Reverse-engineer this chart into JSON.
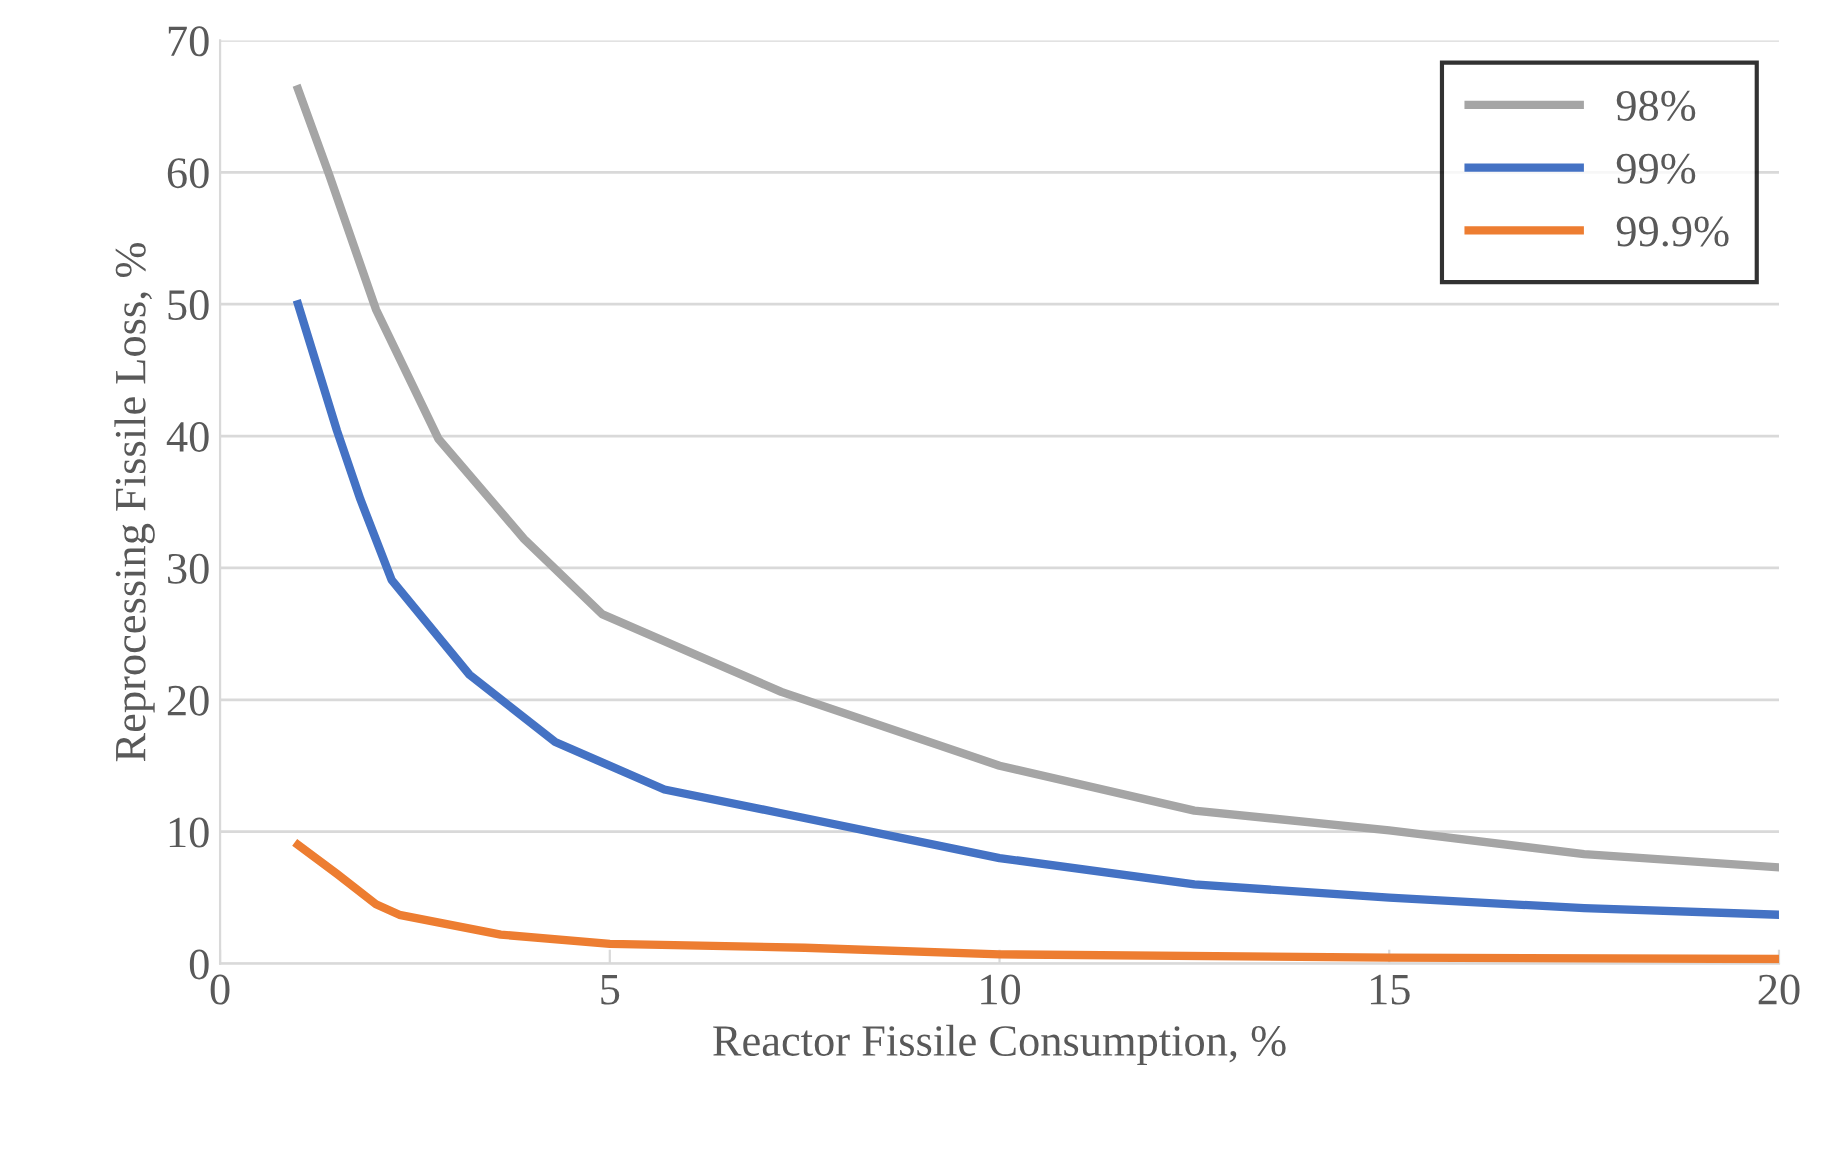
{
  "chart_data": {
    "type": "line",
    "xlabel": "Reactor Fissile Consumption, %",
    "ylabel": "Reprocessing Fissile Loss, %",
    "xlim": [
      0,
      20
    ],
    "xticks": [
      0,
      5,
      10,
      15,
      20
    ],
    "ylim": [
      0,
      70
    ],
    "yticks": [
      0,
      10,
      20,
      30,
      40,
      50,
      60,
      70
    ],
    "grid": "y",
    "legend": "top right",
    "marker": "none",
    "line_style": "solid",
    "series": [
      {
        "name": "98%",
        "color": "#a5a5a5",
        "x": [
          1,
          1.4,
          2,
          2.8,
          3.9,
          4.9,
          7.2,
          10,
          12.5,
          15,
          17.5,
          20
        ],
        "values": [
          66.3,
          59.8,
          49.6,
          39.8,
          32.2,
          26.5,
          20.6,
          15.0,
          11.6,
          10.1,
          8.3,
          7.3
        ]
      },
      {
        "name": "99%",
        "color": "#4472c4",
        "x": [
          1,
          1.5,
          1.8,
          2.2,
          3.2,
          4.3,
          5.7,
          7.2,
          10,
          12.5,
          15,
          17.5,
          20
        ],
        "values": [
          50,
          40.4,
          35.2,
          29.1,
          21.9,
          16.8,
          13.2,
          11.4,
          8.0,
          6.0,
          5.0,
          4.2,
          3.7
        ]
      },
      {
        "name": "99.9%",
        "color": "#ed7d31",
        "x": [
          1,
          1.5,
          2,
          2.3,
          3.6,
          5,
          7.5,
          10,
          15,
          20
        ],
        "values": [
          9.0,
          6.8,
          4.5,
          3.7,
          2.2,
          1.5,
          1.2,
          0.7,
          0.45,
          0.35
        ]
      }
    ]
  }
}
